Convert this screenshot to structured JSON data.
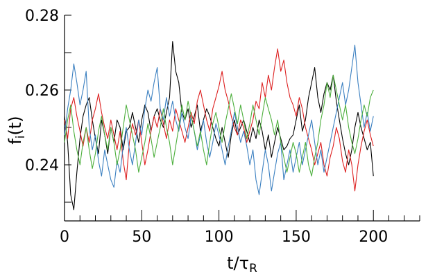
{
  "chart_data": {
    "type": "line",
    "title": "",
    "xlabel_main": "t/τ",
    "xlabel_sub": "R",
    "ylabel_main": "f",
    "ylabel_sub": "i",
    "ylabel_suffix": "(t)",
    "xlim": [
      0,
      230
    ],
    "ylim": [
      0.225,
      0.28
    ],
    "x_tick_labels": [
      "0",
      "50",
      "100",
      "150",
      "200"
    ],
    "x_tick_values": [
      0,
      50,
      100,
      150,
      200
    ],
    "x_minor_step": 10,
    "y_tick_labels": [
      "0.24",
      "0.26",
      "0.28"
    ],
    "y_tick_values": [
      0.24,
      0.26,
      0.28
    ],
    "y_minor_step": 0.01,
    "grid": false,
    "legend": "none",
    "series": [
      {
        "color": "#000000",
        "x": [
          0,
          2,
          4,
          6,
          8,
          10,
          12,
          14,
          16,
          18,
          20,
          22,
          24,
          26,
          28,
          30,
          32,
          34,
          36,
          38,
          40,
          42,
          44,
          46,
          48,
          50,
          52,
          54,
          56,
          58,
          60,
          62,
          64,
          66,
          68,
          70,
          72,
          74,
          76,
          78,
          80,
          82,
          84,
          86,
          88,
          90,
          92,
          94,
          96,
          98,
          100,
          102,
          104,
          106,
          108,
          110,
          112,
          114,
          116,
          118,
          120,
          122,
          124,
          126,
          128,
          130,
          132,
          134,
          136,
          138,
          140,
          142,
          144,
          146,
          148,
          150,
          152,
          154,
          156,
          158,
          160,
          162,
          164,
          166,
          168,
          170,
          172,
          174,
          176,
          178,
          180,
          182,
          184,
          186,
          188,
          190,
          192,
          194,
          196,
          198,
          200
        ],
        "values": [
          0.253,
          0.246,
          0.232,
          0.228,
          0.238,
          0.247,
          0.253,
          0.256,
          0.258,
          0.252,
          0.247,
          0.243,
          0.252,
          0.248,
          0.243,
          0.25,
          0.246,
          0.252,
          0.25,
          0.244,
          0.249,
          0.25,
          0.254,
          0.25,
          0.246,
          0.252,
          0.256,
          0.254,
          0.249,
          0.253,
          0.255,
          0.252,
          0.25,
          0.254,
          0.258,
          0.273,
          0.265,
          0.262,
          0.254,
          0.252,
          0.255,
          0.25,
          0.253,
          0.256,
          0.249,
          0.252,
          0.255,
          0.253,
          0.25,
          0.247,
          0.245,
          0.25,
          0.246,
          0.242,
          0.248,
          0.252,
          0.248,
          0.25,
          0.252,
          0.249,
          0.246,
          0.25,
          0.247,
          0.252,
          0.249,
          0.244,
          0.248,
          0.242,
          0.246,
          0.25,
          0.247,
          0.244,
          0.245,
          0.247,
          0.248,
          0.252,
          0.256,
          0.249,
          0.252,
          0.258,
          0.262,
          0.266,
          0.258,
          0.254,
          0.259,
          0.262,
          0.26,
          0.264,
          0.257,
          0.252,
          0.247,
          0.243,
          0.24,
          0.244,
          0.25,
          0.254,
          0.25,
          0.247,
          0.244,
          0.246,
          0.237
        ]
      },
      {
        "color": "#dd2020",
        "x": [
          0,
          2,
          4,
          6,
          8,
          10,
          12,
          14,
          16,
          18,
          20,
          22,
          24,
          26,
          28,
          30,
          32,
          34,
          36,
          38,
          40,
          42,
          44,
          46,
          48,
          50,
          52,
          54,
          56,
          58,
          60,
          62,
          64,
          66,
          68,
          70,
          72,
          74,
          76,
          78,
          80,
          82,
          84,
          86,
          88,
          90,
          92,
          94,
          96,
          98,
          100,
          102,
          104,
          106,
          108,
          110,
          112,
          114,
          116,
          118,
          120,
          122,
          124,
          126,
          128,
          130,
          132,
          134,
          136,
          138,
          140,
          142,
          144,
          146,
          148,
          150,
          152,
          154,
          156,
          158,
          160,
          162,
          164,
          166,
          168,
          170,
          172,
          174,
          176,
          178,
          180,
          182,
          184,
          186,
          188,
          190,
          192,
          194,
          196,
          198,
          200
        ],
        "values": [
          0.252,
          0.247,
          0.255,
          0.258,
          0.253,
          0.249,
          0.245,
          0.25,
          0.246,
          0.252,
          0.255,
          0.259,
          0.254,
          0.25,
          0.247,
          0.252,
          0.248,
          0.244,
          0.249,
          0.241,
          0.236,
          0.246,
          0.251,
          0.248,
          0.252,
          0.246,
          0.24,
          0.244,
          0.249,
          0.253,
          0.25,
          0.255,
          0.251,
          0.247,
          0.252,
          0.249,
          0.255,
          0.252,
          0.249,
          0.246,
          0.25,
          0.254,
          0.251,
          0.257,
          0.26,
          0.256,
          0.252,
          0.249,
          0.255,
          0.258,
          0.261,
          0.265,
          0.26,
          0.257,
          0.253,
          0.25,
          0.248,
          0.252,
          0.25,
          0.246,
          0.249,
          0.252,
          0.257,
          0.255,
          0.262,
          0.258,
          0.264,
          0.26,
          0.266,
          0.271,
          0.265,
          0.268,
          0.262,
          0.258,
          0.256,
          0.253,
          0.258,
          0.255,
          0.25,
          0.247,
          0.244,
          0.24,
          0.243,
          0.246,
          0.24,
          0.237,
          0.242,
          0.245,
          0.25,
          0.247,
          0.241,
          0.238,
          0.244,
          0.24,
          0.233,
          0.24,
          0.245,
          0.249,
          0.252,
          0.248,
          0.245
        ]
      },
      {
        "color": "#3a7fc0",
        "x": [
          0,
          2,
          4,
          6,
          8,
          10,
          12,
          14,
          16,
          18,
          20,
          22,
          24,
          26,
          28,
          30,
          32,
          34,
          36,
          38,
          40,
          42,
          44,
          46,
          48,
          50,
          52,
          54,
          56,
          58,
          60,
          62,
          64,
          66,
          68,
          70,
          72,
          74,
          76,
          78,
          80,
          82,
          84,
          86,
          88,
          90,
          92,
          94,
          96,
          98,
          100,
          102,
          104,
          106,
          108,
          110,
          112,
          114,
          116,
          118,
          120,
          122,
          124,
          126,
          128,
          130,
          132,
          134,
          136,
          138,
          140,
          142,
          144,
          146,
          148,
          150,
          152,
          154,
          156,
          158,
          160,
          162,
          164,
          166,
          168,
          170,
          172,
          174,
          176,
          178,
          180,
          182,
          184,
          186,
          188,
          190,
          192,
          194,
          196,
          198,
          200
        ],
        "values": [
          0.248,
          0.255,
          0.26,
          0.267,
          0.262,
          0.256,
          0.26,
          0.265,
          0.25,
          0.244,
          0.248,
          0.241,
          0.237,
          0.244,
          0.24,
          0.236,
          0.234,
          0.241,
          0.238,
          0.245,
          0.25,
          0.244,
          0.24,
          0.246,
          0.252,
          0.248,
          0.255,
          0.26,
          0.257,
          0.262,
          0.266,
          0.255,
          0.252,
          0.258,
          0.253,
          0.257,
          0.252,
          0.249,
          0.254,
          0.25,
          0.247,
          0.253,
          0.249,
          0.244,
          0.248,
          0.252,
          0.246,
          0.242,
          0.246,
          0.251,
          0.248,
          0.244,
          0.24,
          0.245,
          0.249,
          0.254,
          0.25,
          0.246,
          0.249,
          0.245,
          0.24,
          0.244,
          0.236,
          0.232,
          0.238,
          0.244,
          0.24,
          0.233,
          0.238,
          0.243,
          0.246,
          0.236,
          0.24,
          0.244,
          0.238,
          0.242,
          0.246,
          0.24,
          0.244,
          0.248,
          0.252,
          0.246,
          0.24,
          0.244,
          0.238,
          0.242,
          0.246,
          0.25,
          0.254,
          0.258,
          0.262,
          0.256,
          0.26,
          0.266,
          0.272,
          0.262,
          0.256,
          0.25,
          0.254,
          0.249,
          0.253
        ]
      },
      {
        "color": "#4caf3c",
        "x": [
          0,
          2,
          4,
          6,
          8,
          10,
          12,
          14,
          16,
          18,
          20,
          22,
          24,
          26,
          28,
          30,
          32,
          34,
          36,
          38,
          40,
          42,
          44,
          46,
          48,
          50,
          52,
          54,
          56,
          58,
          60,
          62,
          64,
          66,
          68,
          70,
          72,
          74,
          76,
          78,
          80,
          82,
          84,
          86,
          88,
          90,
          92,
          94,
          96,
          98,
          100,
          102,
          104,
          106,
          108,
          110,
          112,
          114,
          116,
          118,
          120,
          122,
          124,
          126,
          128,
          130,
          132,
          134,
          136,
          138,
          140,
          142,
          144,
          146,
          148,
          150,
          152,
          154,
          156,
          158,
          160,
          162,
          164,
          166,
          168,
          170,
          172,
          174,
          176,
          178,
          180,
          182,
          184,
          186,
          188,
          190,
          192,
          194,
          196,
          198,
          200
        ],
        "values": [
          0.246,
          0.252,
          0.256,
          0.249,
          0.244,
          0.24,
          0.246,
          0.25,
          0.244,
          0.239,
          0.243,
          0.249,
          0.253,
          0.248,
          0.244,
          0.25,
          0.246,
          0.24,
          0.244,
          0.25,
          0.256,
          0.252,
          0.248,
          0.244,
          0.238,
          0.242,
          0.246,
          0.251,
          0.247,
          0.242,
          0.246,
          0.25,
          0.255,
          0.25,
          0.246,
          0.24,
          0.245,
          0.25,
          0.256,
          0.252,
          0.257,
          0.253,
          0.249,
          0.245,
          0.249,
          0.244,
          0.24,
          0.246,
          0.251,
          0.254,
          0.25,
          0.246,
          0.251,
          0.255,
          0.259,
          0.255,
          0.251,
          0.256,
          0.252,
          0.247,
          0.251,
          0.256,
          0.252,
          0.248,
          0.253,
          0.258,
          0.255,
          0.252,
          0.248,
          0.252,
          0.246,
          0.242,
          0.238,
          0.242,
          0.246,
          0.243,
          0.238,
          0.242,
          0.246,
          0.24,
          0.237,
          0.242,
          0.246,
          0.252,
          0.256,
          0.262,
          0.258,
          0.264,
          0.26,
          0.256,
          0.252,
          0.256,
          0.25,
          0.246,
          0.243,
          0.247,
          0.252,
          0.256,
          0.253,
          0.258,
          0.26
        ]
      }
    ]
  }
}
